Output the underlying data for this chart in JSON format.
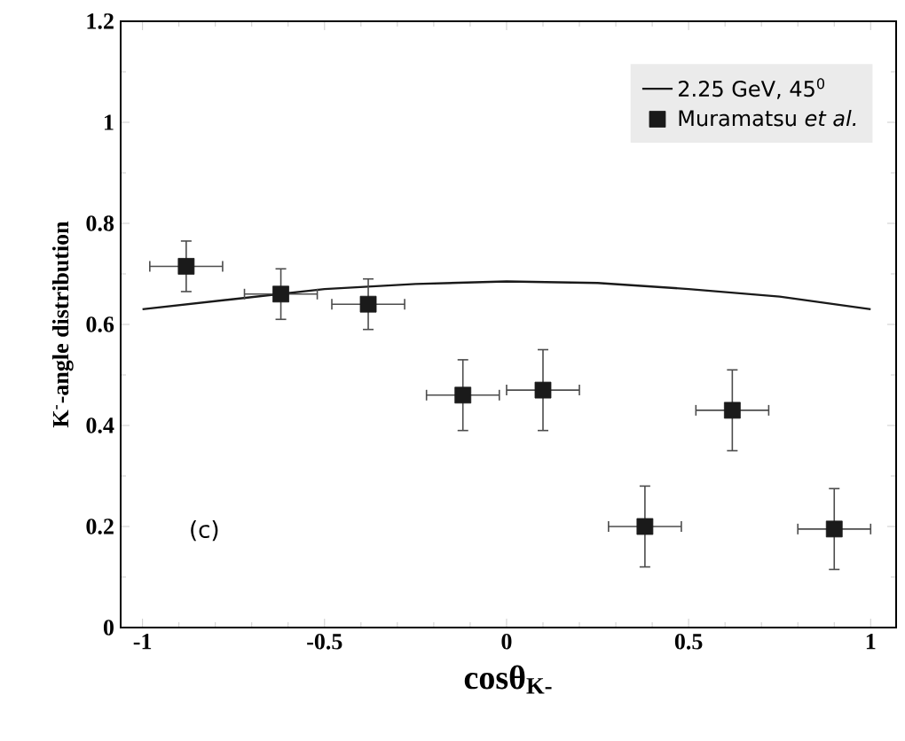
{
  "chart_data": {
    "type": "scatter",
    "xlabel": "cosθ$_{K-}$",
    "ylabel": "K$^{-}$-angle distribution",
    "annotations": [
      "(c)"
    ],
    "xlim": [
      -1.06,
      1.07
    ],
    "ylim": [
      0,
      1.2
    ],
    "xticks": [
      -1,
      -0.5,
      0,
      0.5,
      1
    ],
    "yticks": [
      0,
      0.2,
      0.4,
      0.6,
      0.8,
      1,
      1.2
    ],
    "legend": "top right",
    "series": [
      {
        "name": "2.25 GeV, 45$^{0}$",
        "type": "line",
        "color": "#1a1a1a",
        "line_style": "solid",
        "x": [
          -1,
          -0.75,
          -0.5,
          -0.25,
          0,
          0.25,
          0.5,
          0.75,
          1
        ],
        "values": [
          0.63,
          0.65,
          0.67,
          0.68,
          0.685,
          0.682,
          0.67,
          0.655,
          0.63
        ]
      },
      {
        "name": "Muramatsu *et al.*",
        "color": "#1a1a1a",
        "marker": "square",
        "x": [
          -0.88,
          -0.62,
          -0.38,
          -0.12,
          0.1,
          0.38,
          0.62,
          0.9
        ],
        "values": [
          0.715,
          0.66,
          0.64,
          0.46,
          0.47,
          0.2,
          0.43,
          0.195
        ],
        "errors": [
          0.05,
          0.05,
          0.05,
          0.07,
          0.08,
          0.08,
          0.08,
          0.08
        ],
        "xerrors": [
          0.1,
          0.1,
          0.1,
          0.1,
          0.1,
          0.1,
          0.1,
          0.1
        ]
      }
    ]
  }
}
